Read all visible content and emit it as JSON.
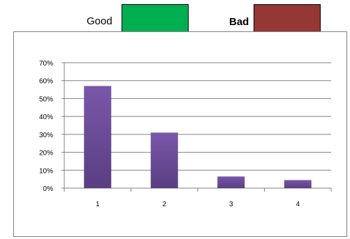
{
  "legend": {
    "items": [
      {
        "label": "Good",
        "color": "#00b050"
      },
      {
        "label": "Bad",
        "color": "#953735"
      }
    ]
  },
  "colors": {
    "bar": "#7a57a8",
    "bar_dark": "#5a3e82",
    "grid": "#808080"
  },
  "chart_data": {
    "type": "bar",
    "categories": [
      "1",
      "2",
      "3",
      "4"
    ],
    "values": [
      0.57,
      0.31,
      0.065,
      0.045
    ],
    "ylim": [
      0,
      0.7
    ],
    "yticks": [
      0,
      0.1,
      0.2,
      0.3,
      0.4,
      0.5,
      0.6,
      0.7
    ],
    "ytick_labels": [
      "0%",
      "10%",
      "20%",
      "30%",
      "40%",
      "50%",
      "60%",
      "70%"
    ],
    "grid": true,
    "title": "",
    "xlabel": "",
    "ylabel": ""
  }
}
